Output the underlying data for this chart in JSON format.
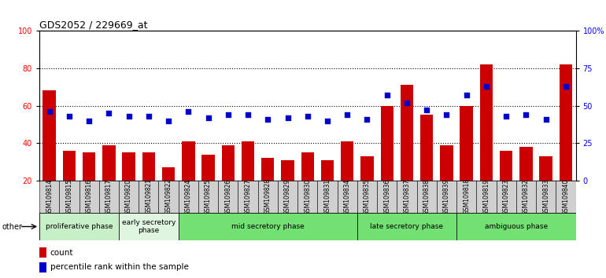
{
  "title": "GDS2052 / 229669_at",
  "samples": [
    "GSM109814",
    "GSM109815",
    "GSM109816",
    "GSM109817",
    "GSM109820",
    "GSM109821",
    "GSM109822",
    "GSM109824",
    "GSM109825",
    "GSM109826",
    "GSM109827",
    "GSM109828",
    "GSM109829",
    "GSM109830",
    "GSM109831",
    "GSM109834",
    "GSM109835",
    "GSM109836",
    "GSM109837",
    "GSM109838",
    "GSM109839",
    "GSM109818",
    "GSM109819",
    "GSM109823",
    "GSM109832",
    "GSM109833",
    "GSM109840"
  ],
  "counts": [
    68,
    36,
    35,
    39,
    35,
    35,
    27,
    41,
    34,
    39,
    41,
    32,
    31,
    35,
    31,
    41,
    33,
    60,
    71,
    55,
    39,
    60,
    82,
    36,
    38,
    33,
    82
  ],
  "percentiles": [
    46,
    43,
    40,
    45,
    43,
    43,
    40,
    46,
    42,
    44,
    44,
    41,
    42,
    43,
    40,
    44,
    41,
    57,
    52,
    47,
    44,
    57,
    63,
    43,
    44,
    41,
    63
  ],
  "phases": [
    {
      "label": "proliferative phase",
      "start": 0,
      "end": 4,
      "color": "#c8f0c8"
    },
    {
      "label": "early secretory\nphase",
      "start": 4,
      "end": 7,
      "color": "#e0f5e0"
    },
    {
      "label": "mid secretory phase",
      "start": 7,
      "end": 16,
      "color": "#72e072"
    },
    {
      "label": "late secretory phase",
      "start": 16,
      "end": 21,
      "color": "#72e072"
    },
    {
      "label": "ambiguous phase",
      "start": 21,
      "end": 27,
      "color": "#72e072"
    }
  ],
  "ylim_left": [
    20,
    100
  ],
  "left_ticks": [
    20,
    40,
    60,
    80,
    100
  ],
  "right_ticks": [
    0,
    25,
    50,
    75,
    100
  ],
  "bar_color": "#cc0000",
  "dot_color": "#0000cc",
  "bg_color": "#ffffff",
  "tick_label_fontsize": 7,
  "sample_fontsize": 5.5,
  "title_fontsize": 9
}
